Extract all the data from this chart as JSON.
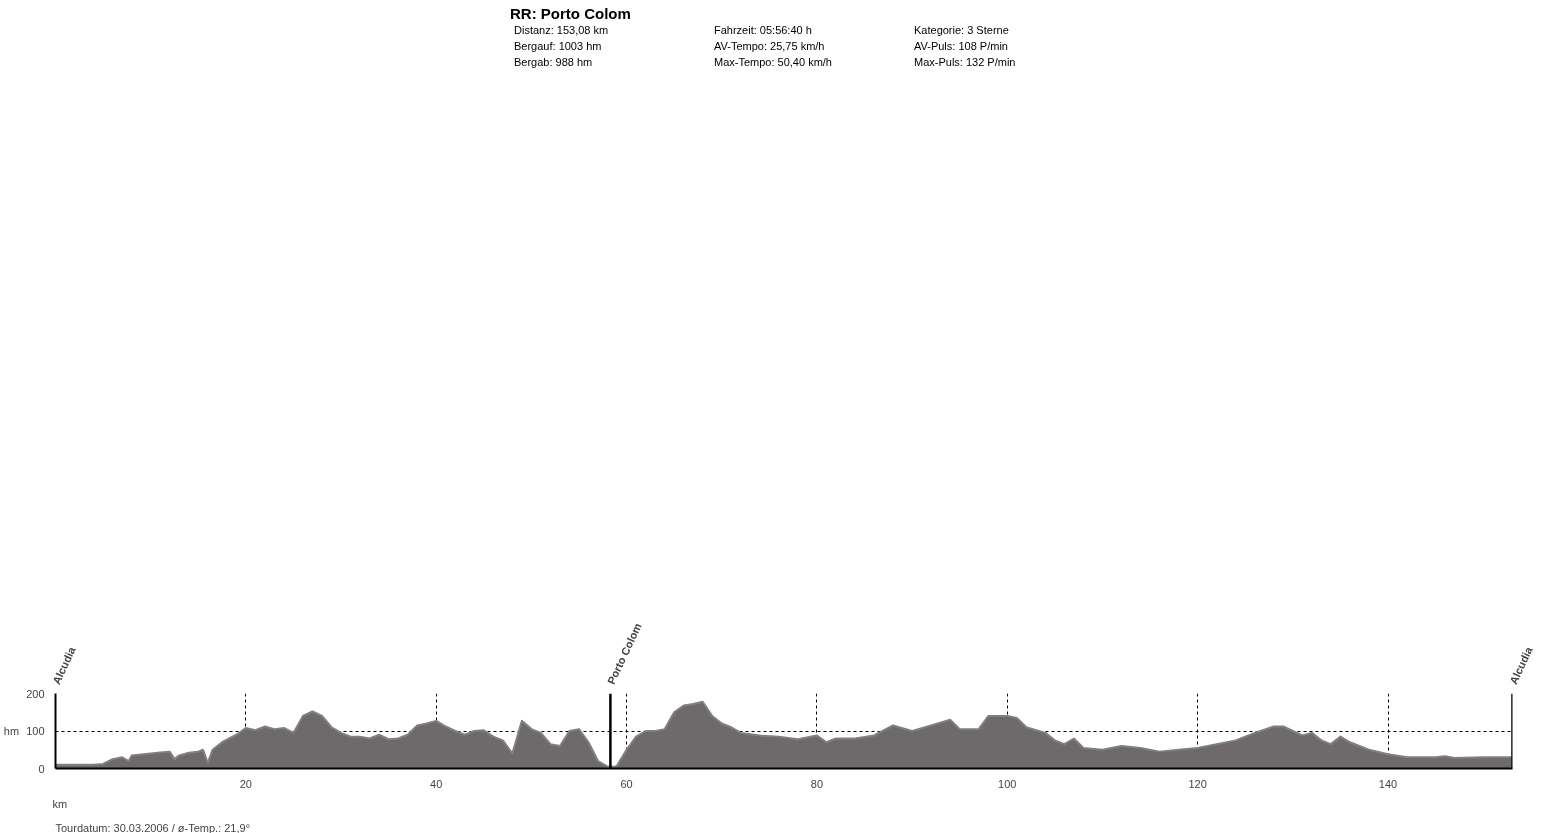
{
  "chart_data": {
    "type": "area",
    "title": "RR: Porto Colom",
    "subtitle": null,
    "annotations": [
      "Distanz: 153,08 km",
      "Bergauf: 1003 hm",
      "Bergab: 988 hm",
      "Fahrzeit: 05:56:40 h",
      "AV-Tempo: 25,75 km/h",
      "Max-Tempo: 50,40 km/h",
      "Kategorie: 3 Sterne",
      "AV-Puls: 108 P/min",
      "Max-Puls: 132 P/min",
      "Tourdatum: 30.03.2006  /  ø-Temp.: 21,9°",
      "Alcudia"
    ],
    "xlabel": "km",
    "ylabel": "hm",
    "x": [
      0,
      2,
      4,
      5,
      6,
      7,
      7.7,
      8,
      10,
      11,
      12,
      12.5,
      13,
      14,
      15,
      15.5,
      16,
      16.5,
      17.5,
      19,
      20,
      21,
      22,
      23,
      24,
      25,
      26,
      27,
      28,
      29,
      30,
      31,
      32,
      33,
      34,
      35,
      36,
      37,
      38,
      39,
      40,
      41,
      42,
      43,
      44,
      45,
      46,
      47,
      48,
      49,
      50,
      51,
      52,
      53,
      54,
      55,
      56,
      57,
      58,
      58.8,
      59,
      60,
      61,
      62,
      63,
      64,
      65,
      66,
      67,
      68,
      69,
      70,
      71,
      72,
      74,
      76,
      78,
      80,
      81,
      82,
      84,
      86,
      88,
      90,
      92,
      94,
      95,
      97,
      98,
      99,
      100,
      101,
      102,
      104,
      105,
      106,
      107,
      108,
      110,
      112,
      114,
      116,
      118,
      120,
      122,
      124,
      126,
      128,
      129,
      130,
      131,
      132,
      133,
      134,
      135,
      136,
      138,
      140,
      142,
      145,
      146,
      147,
      150,
      153
    ],
    "series": [
      {
        "color": "#6e6a6c",
        "values": [
          10,
          10,
          10,
          12,
          25,
          30,
          20,
          35,
          40,
          43,
          45,
          25,
          35,
          42,
          45,
          50,
          15,
          50,
          70,
          90,
          108,
          102,
          112,
          105,
          108,
          95,
          140,
          152,
          140,
          110,
          95,
          85,
          85,
          80,
          90,
          78,
          80,
          90,
          115,
          120,
          127,
          112,
          100,
          90,
          100,
          102,
          85,
          75,
          40,
          127,
          105,
          95,
          65,
          60,
          100,
          105,
          70,
          20,
          5,
          5,
          8,
          50,
          85,
          100,
          100,
          105,
          150,
          168,
          172,
          178,
          140,
          120,
          110,
          95,
          88,
          85,
          78,
          88,
          70,
          80,
          80,
          88,
          115,
          100,
          115,
          130,
          105,
          105,
          140,
          140,
          140,
          135,
          110,
          95,
          75,
          65,
          80,
          55,
          50,
          60,
          55,
          45,
          50,
          55,
          65,
          75,
          95,
          112,
          112,
          100,
          88,
          95,
          75,
          65,
          85,
          70,
          50,
          38,
          30,
          30,
          33,
          28,
          30,
          30
        ]
      }
    ],
    "xlim": [
      0,
      153.08
    ],
    "ylim": [
      0,
      200
    ],
    "xticks": [
      20,
      40,
      60,
      80,
      100,
      120,
      140
    ],
    "yticks": [
      0,
      100,
      200
    ],
    "grid": true,
    "line_style": "solid",
    "marker": "none",
    "ref_lines": [
      {
        "axis": "x",
        "value": 58.3,
        "label": "Porto Colom"
      },
      {
        "axis": "x",
        "value": 153.08,
        "label": "Alcudia"
      }
    ]
  }
}
